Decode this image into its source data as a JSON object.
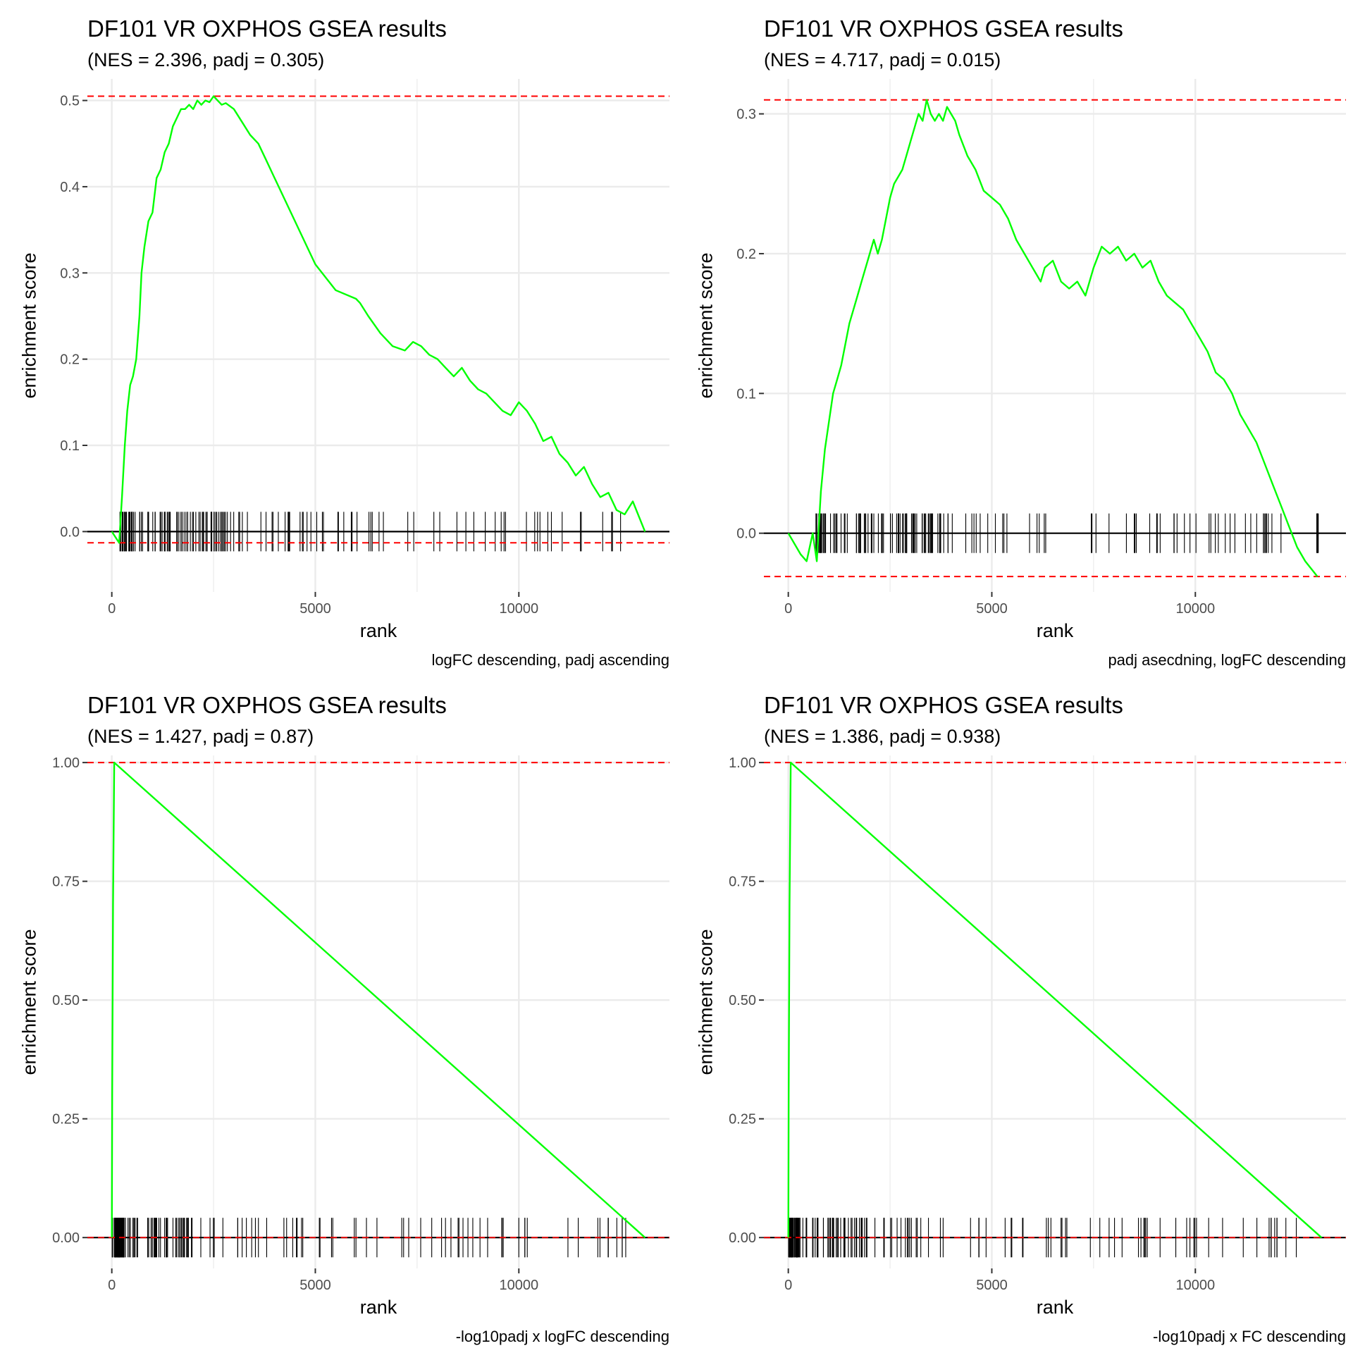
{
  "chart_data": [
    {
      "type": "line",
      "title": "DF101 VR OXPHOS GSEA results",
      "subtitle": "(NES = 2.396, padj = 0.305)",
      "xlabel": "rank",
      "ylabel": "enrichment score",
      "caption": "logFC descending, padj ascending",
      "xlim": [
        -600,
        13700
      ],
      "ylim": [
        -0.07,
        0.525
      ],
      "x_ticks": [
        0,
        5000,
        10000
      ],
      "y_ticks": [
        0.0,
        0.1,
        0.2,
        0.3,
        0.4,
        0.5
      ],
      "y_tick_labels": [
        "0.0",
        "0.1",
        "0.2",
        "0.3",
        "0.4",
        "0.5"
      ],
      "es_max": 0.505,
      "es_min": -0.013,
      "running_es": {
        "x": [
          0,
          180,
          250,
          320,
          380,
          450,
          520,
          600,
          680,
          730,
          800,
          900,
          1000,
          1100,
          1200,
          1300,
          1400,
          1500,
          1600,
          1700,
          1800,
          1900,
          2000,
          2100,
          2200,
          2300,
          2400,
          2500,
          2600,
          2700,
          2800,
          3000,
          3200,
          3400,
          3600,
          3800,
          4000,
          4500,
          5000,
          5500,
          6000,
          6100,
          6300,
          6600,
          6900,
          7200,
          7400,
          7600,
          7800,
          8000,
          8200,
          8400,
          8600,
          8800,
          9000,
          9200,
          9400,
          9600,
          9800,
          10000,
          10200,
          10400,
          10600,
          10800,
          11000,
          11200,
          11400,
          11600,
          11800,
          12000,
          12200,
          12400,
          12600,
          12800,
          13100
        ],
        "y": [
          0.0,
          -0.013,
          0.04,
          0.1,
          0.14,
          0.17,
          0.18,
          0.2,
          0.25,
          0.3,
          0.33,
          0.36,
          0.37,
          0.41,
          0.42,
          0.44,
          0.45,
          0.47,
          0.48,
          0.49,
          0.49,
          0.495,
          0.49,
          0.5,
          0.495,
          0.5,
          0.498,
          0.505,
          0.5,
          0.495,
          0.497,
          0.49,
          0.475,
          0.46,
          0.45,
          0.43,
          0.41,
          0.36,
          0.31,
          0.28,
          0.27,
          0.265,
          0.25,
          0.23,
          0.215,
          0.21,
          0.22,
          0.215,
          0.205,
          0.2,
          0.19,
          0.18,
          0.19,
          0.175,
          0.165,
          0.16,
          0.15,
          0.14,
          0.135,
          0.15,
          0.14,
          0.125,
          0.105,
          0.11,
          0.09,
          0.08,
          0.065,
          0.075,
          0.055,
          0.04,
          0.045,
          0.025,
          0.02,
          0.035,
          0.0
        ]
      },
      "hits_rule": "dense_front",
      "hit_seed": 11,
      "hit_count": 140
    },
    {
      "type": "line",
      "title": "DF101 VR OXPHOS GSEA results",
      "subtitle": "(NES = 4.717, padj = 0.015)",
      "xlabel": "rank",
      "ylabel": "enrichment score",
      "caption": "padj asecdning, logFC descending",
      "xlim": [
        -600,
        13700
      ],
      "ylim": [
        -0.042,
        0.325
      ],
      "x_ticks": [
        0,
        5000,
        10000
      ],
      "y_ticks": [
        0.0,
        0.1,
        0.2,
        0.3
      ],
      "y_tick_labels": [
        "0.0",
        "0.1",
        "0.2",
        "0.3"
      ],
      "es_max": 0.31,
      "es_min": -0.031,
      "running_es": {
        "x": [
          0,
          300,
          450,
          600,
          700,
          800,
          900,
          1000,
          1100,
          1200,
          1300,
          1400,
          1500,
          1600,
          1700,
          1800,
          1900,
          2000,
          2100,
          2200,
          2300,
          2400,
          2500,
          2600,
          2700,
          2800,
          2900,
          3000,
          3100,
          3200,
          3300,
          3400,
          3500,
          3600,
          3700,
          3800,
          3900,
          4000,
          4100,
          4200,
          4400,
          4600,
          4800,
          5000,
          5200,
          5400,
          5600,
          5800,
          6000,
          6200,
          6300,
          6500,
          6700,
          6900,
          7100,
          7300,
          7500,
          7700,
          7900,
          8100,
          8300,
          8500,
          8700,
          8900,
          9100,
          9300,
          9500,
          9700,
          9900,
          10100,
          10300,
          10500,
          10700,
          10900,
          11100,
          11300,
          11500,
          11700,
          11900,
          12100,
          12300,
          12500,
          12700,
          13000
        ],
        "y": [
          0.0,
          -0.015,
          -0.02,
          0.0,
          -0.02,
          0.03,
          0.06,
          0.08,
          0.1,
          0.11,
          0.12,
          0.135,
          0.15,
          0.16,
          0.17,
          0.18,
          0.19,
          0.2,
          0.21,
          0.2,
          0.21,
          0.225,
          0.24,
          0.25,
          0.255,
          0.26,
          0.27,
          0.28,
          0.29,
          0.3,
          0.295,
          0.31,
          0.3,
          0.295,
          0.3,
          0.295,
          0.305,
          0.3,
          0.295,
          0.285,
          0.27,
          0.26,
          0.245,
          0.24,
          0.235,
          0.225,
          0.21,
          0.2,
          0.19,
          0.18,
          0.19,
          0.195,
          0.18,
          0.175,
          0.18,
          0.17,
          0.19,
          0.205,
          0.2,
          0.205,
          0.195,
          0.2,
          0.19,
          0.195,
          0.18,
          0.17,
          0.165,
          0.16,
          0.15,
          0.14,
          0.13,
          0.115,
          0.11,
          0.1,
          0.085,
          0.075,
          0.065,
          0.05,
          0.035,
          0.02,
          0.005,
          -0.01,
          -0.02,
          -0.031
        ]
      },
      "hits_rule": "spread_with_tail",
      "hit_seed": 23,
      "hit_count": 150
    },
    {
      "type": "line",
      "title": "DF101 VR OXPHOS GSEA results",
      "subtitle": "(NES = 1.427, padj = 0.87)",
      "xlabel": "rank",
      "ylabel": "enrichment score",
      "caption": "-log10padj x logFC descending",
      "xlim": [
        -600,
        13700
      ],
      "ylim": [
        -0.065,
        1.015
      ],
      "x_ticks": [
        0,
        5000,
        10000
      ],
      "y_ticks": [
        0.0,
        0.25,
        0.5,
        0.75,
        1.0
      ],
      "y_tick_labels": [
        "0.00",
        "0.25",
        "0.50",
        "0.75",
        "1.00"
      ],
      "es_max": 1.0,
      "es_min": 0.0,
      "running_es": {
        "x": [
          0,
          10,
          30,
          60,
          13100
        ],
        "y": [
          0.0,
          0.3,
          0.7,
          1.0,
          0.0
        ]
      },
      "hits_rule": "spike_front",
      "hit_seed": 37,
      "hit_count": 170
    },
    {
      "type": "line",
      "title": "DF101 VR OXPHOS GSEA results",
      "subtitle": "(NES = 1.386, padj = 0.938)",
      "xlabel": "rank",
      "ylabel": "enrichment score",
      "caption": "-log10padj x FC descending",
      "xlim": [
        -600,
        13700
      ],
      "ylim": [
        -0.065,
        1.015
      ],
      "x_ticks": [
        0,
        5000,
        10000
      ],
      "y_ticks": [
        0.0,
        0.25,
        0.5,
        0.75,
        1.0
      ],
      "y_tick_labels": [
        "0.00",
        "0.25",
        "0.50",
        "0.75",
        "1.00"
      ],
      "es_max": 1.0,
      "es_min": 0.0,
      "running_es": {
        "x": [
          0,
          10,
          30,
          60,
          13100
        ],
        "y": [
          0.0,
          0.3,
          0.7,
          1.0,
          0.0
        ]
      },
      "hits_rule": "spike_front",
      "hit_seed": 53,
      "hit_count": 165
    }
  ],
  "colors": {
    "curve": "#00ff00",
    "hits": "#000000",
    "es_lines": "#ff0000",
    "zero_line": "#000000",
    "grid": "#ebebeb",
    "tick_text": "#4d4d4d"
  }
}
